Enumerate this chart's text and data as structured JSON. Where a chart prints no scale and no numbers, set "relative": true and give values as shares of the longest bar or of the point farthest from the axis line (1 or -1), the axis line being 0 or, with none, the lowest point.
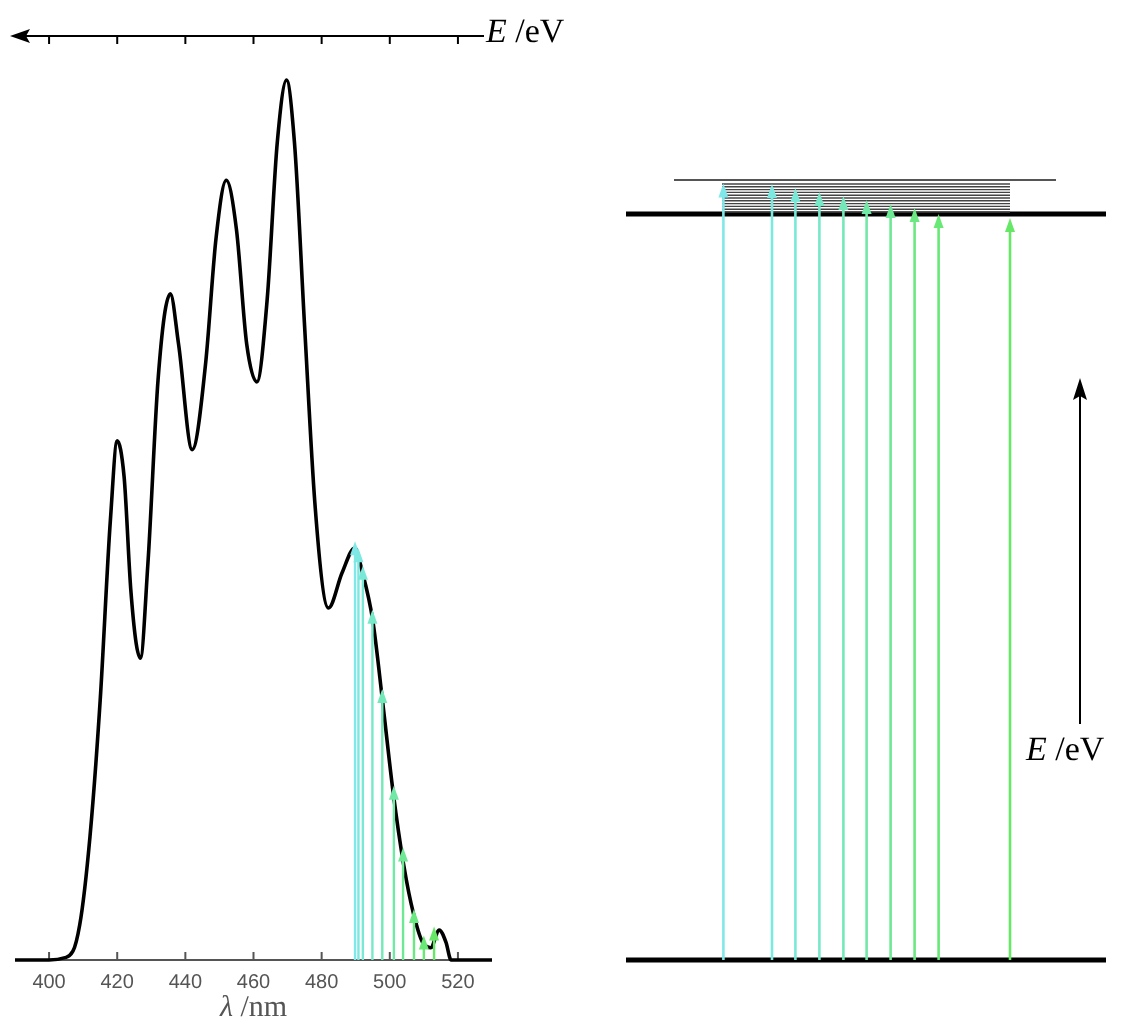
{
  "chart_data": {
    "type": "line",
    "xlabel": "λ /nm",
    "x2label": "E /eV",
    "relative": true,
    "xlim": [
      390,
      530
    ],
    "xticks": [
      400,
      420,
      440,
      460,
      480,
      500,
      520
    ],
    "tick_labels": "x",
    "series": [
      {
        "color": "#000000",
        "x": [
          390,
          400,
          405,
          407,
          409,
          412,
          415,
          418,
          420,
          422,
          424,
          426.8,
          429,
          432,
          435.6,
          438,
          442,
          446,
          449,
          452,
          455,
          458,
          461,
          464,
          467,
          469.7,
          472,
          475,
          478,
          482,
          486,
          489.7,
          492,
          495,
          498,
          501,
          504,
          507,
          510,
          512,
          514.5,
          516.5,
          518,
          522,
          530
        ],
        "values": [
          0,
          0,
          0.003,
          0.01,
          0.04,
          0.14,
          0.295,
          0.5,
          0.59,
          0.55,
          0.42,
          0.343,
          0.45,
          0.66,
          0.757,
          0.7,
          0.58,
          0.68,
          0.82,
          0.886,
          0.83,
          0.7,
          0.657,
          0.75,
          0.93,
          1,
          0.93,
          0.72,
          0.52,
          0.4,
          0.44,
          0.468,
          0.44,
          0.386,
          0.29,
          0.19,
          0.11,
          0.052,
          0.018,
          0.014,
          0.034,
          0.02,
          0,
          0,
          0
        ]
      },
      {
        "type": "lollipop",
        "marker": "triangle",
        "x": [
          489.8,
          490.8,
          492.1,
          494.9,
          497.8,
          501.2,
          503.9,
          507.1,
          510,
          513
        ],
        "values": [
          0.468,
          0.46,
          0.44,
          0.39,
          0.3,
          0.19,
          0.12,
          0.05,
          0.02,
          0.03
        ],
        "colors": [
          "#80e8e8",
          "#7de8e0",
          "#7ae8d6",
          "#77e8c8",
          "#74e8b8",
          "#71e8a6",
          "#6ee894",
          "#6be882",
          "#68e874",
          "#66e866"
        ]
      }
    ],
    "annotations": [
      "E /eV"
    ]
  }
}
